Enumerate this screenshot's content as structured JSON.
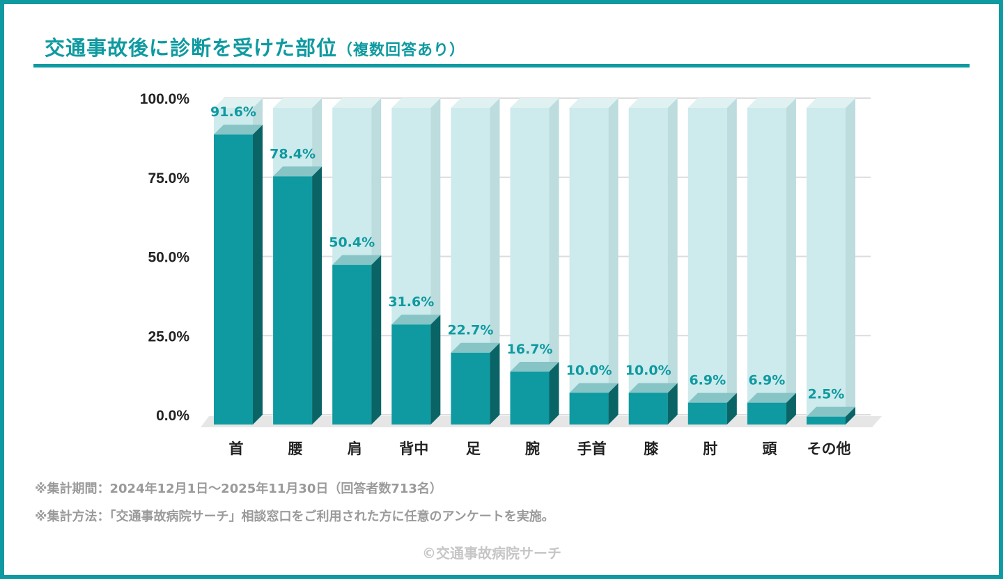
{
  "title": "交通事故後に診断を受けた部位",
  "title_note": "（複数回答あり）",
  "chart_data": {
    "type": "bar",
    "title": "交通事故後に診断を受けた部位（複数回答あり）",
    "categories": [
      "首",
      "腰",
      "肩",
      "背中",
      "足",
      "腕",
      "手首",
      "膝",
      "肘",
      "頭",
      "その他"
    ],
    "values": [
      91.6,
      78.4,
      50.4,
      31.6,
      22.7,
      16.7,
      10.0,
      10.0,
      6.9,
      6.9,
      2.5
    ],
    "data_labels": [
      "91.6%",
      "78.4%",
      "50.4%",
      "31.6%",
      "22.7%",
      "16.7%",
      "10.0%",
      "10.0%",
      "6.9%",
      "6.9%",
      "2.5%"
    ],
    "yticks": [
      "0.0%",
      "25.0%",
      "50.0%",
      "75.0%",
      "100.0%"
    ],
    "ylim": [
      0,
      100
    ],
    "grid": true,
    "style": "3d",
    "colors": {
      "bar": "#0e9aa0",
      "bar_side": "#0a6466",
      "bar_top": "#86c4c6",
      "bg_column": "#cdeaec",
      "label": "#0e9aa0"
    }
  },
  "notes": [
    "※集計期間：2024年12月1日～2025年11月30日（回答者数713名）",
    "※集計方法：「交通事故病院サーチ」相談窓口をご利用された方に任意のアンケートを実施。"
  ],
  "credit": "©交通事故病院サーチ"
}
